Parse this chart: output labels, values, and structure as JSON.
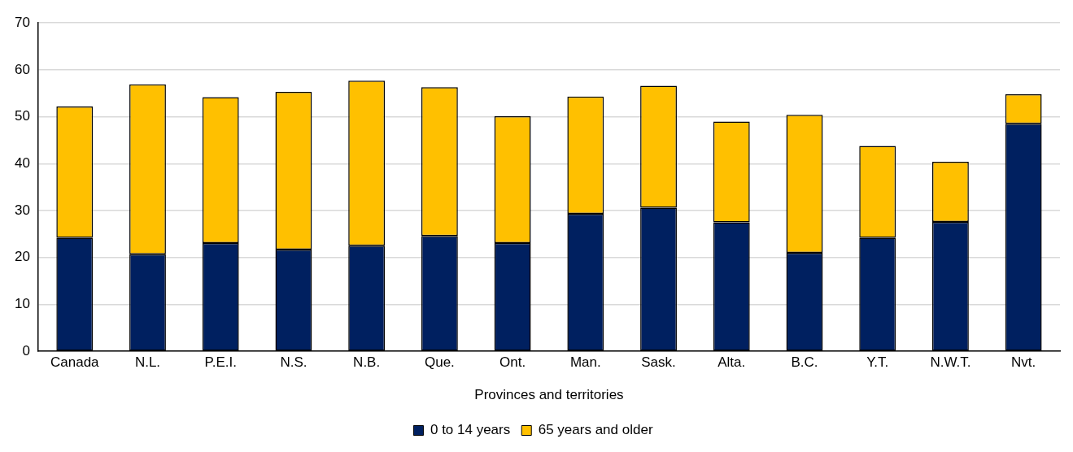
{
  "chart_data": {
    "type": "bar",
    "stacked": true,
    "xlabel": "Provinces and territories",
    "categories": [
      "Canada",
      "N.L.",
      "P.E.I.",
      "N.S.",
      "N.B.",
      "Que.",
      "Ont.",
      "Man.",
      "Sask.",
      "Alta.",
      "B.C.",
      "Y.T.",
      "N.W.T.",
      "Nvt."
    ],
    "series": [
      {
        "name": "0 to 14 years",
        "color": "#002060",
        "values": [
          24.2,
          20.7,
          23.1,
          21.7,
          22.5,
          24.6,
          23.1,
          29.3,
          30.6,
          27.5,
          21.0,
          24.2,
          27.6,
          48.5
        ]
      },
      {
        "name": "65 years and older",
        "color": "#ffc000",
        "values": [
          28.0,
          36.2,
          31.1,
          33.6,
          35.2,
          31.7,
          27.0,
          25.0,
          26.0,
          21.5,
          29.4,
          19.6,
          12.8,
          6.3
        ]
      }
    ],
    "ylim": [
      0,
      70
    ],
    "yticks": [
      0,
      10,
      20,
      30,
      40,
      50,
      60,
      70
    ],
    "grid": "y",
    "legend": "bottom"
  }
}
